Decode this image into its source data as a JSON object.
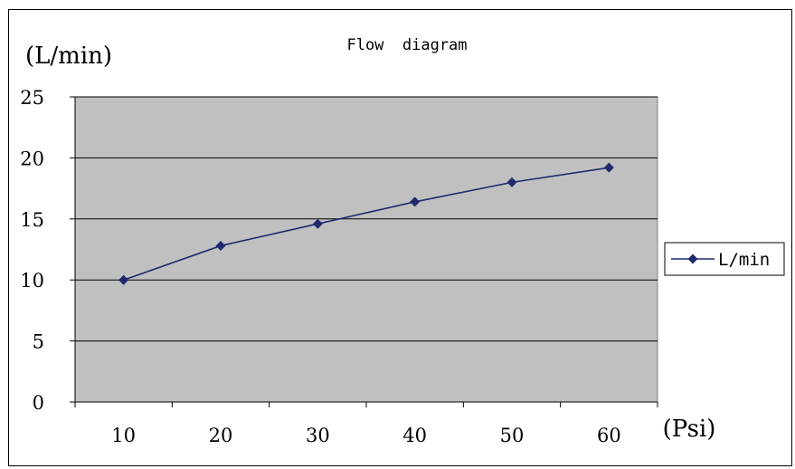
{
  "chart_data": {
    "type": "line",
    "title": "Flow  diagram",
    "ylabel": "(L/min)",
    "xlabel": "(Psi)",
    "categories": [
      "10",
      "20",
      "30",
      "40",
      "50",
      "60"
    ],
    "series": [
      {
        "name": "L/min",
        "values": [
          10,
          12.8,
          14.6,
          16.4,
          18,
          19.2
        ]
      }
    ],
    "ylim": [
      0,
      25
    ],
    "yticks": [
      "0",
      "5",
      "10",
      "15",
      "20",
      "25"
    ],
    "grid": true,
    "legend": "right",
    "colors": {
      "series": "#1f2a6e",
      "plot_background": "#c0c0c0",
      "gridline": "#000000"
    }
  }
}
